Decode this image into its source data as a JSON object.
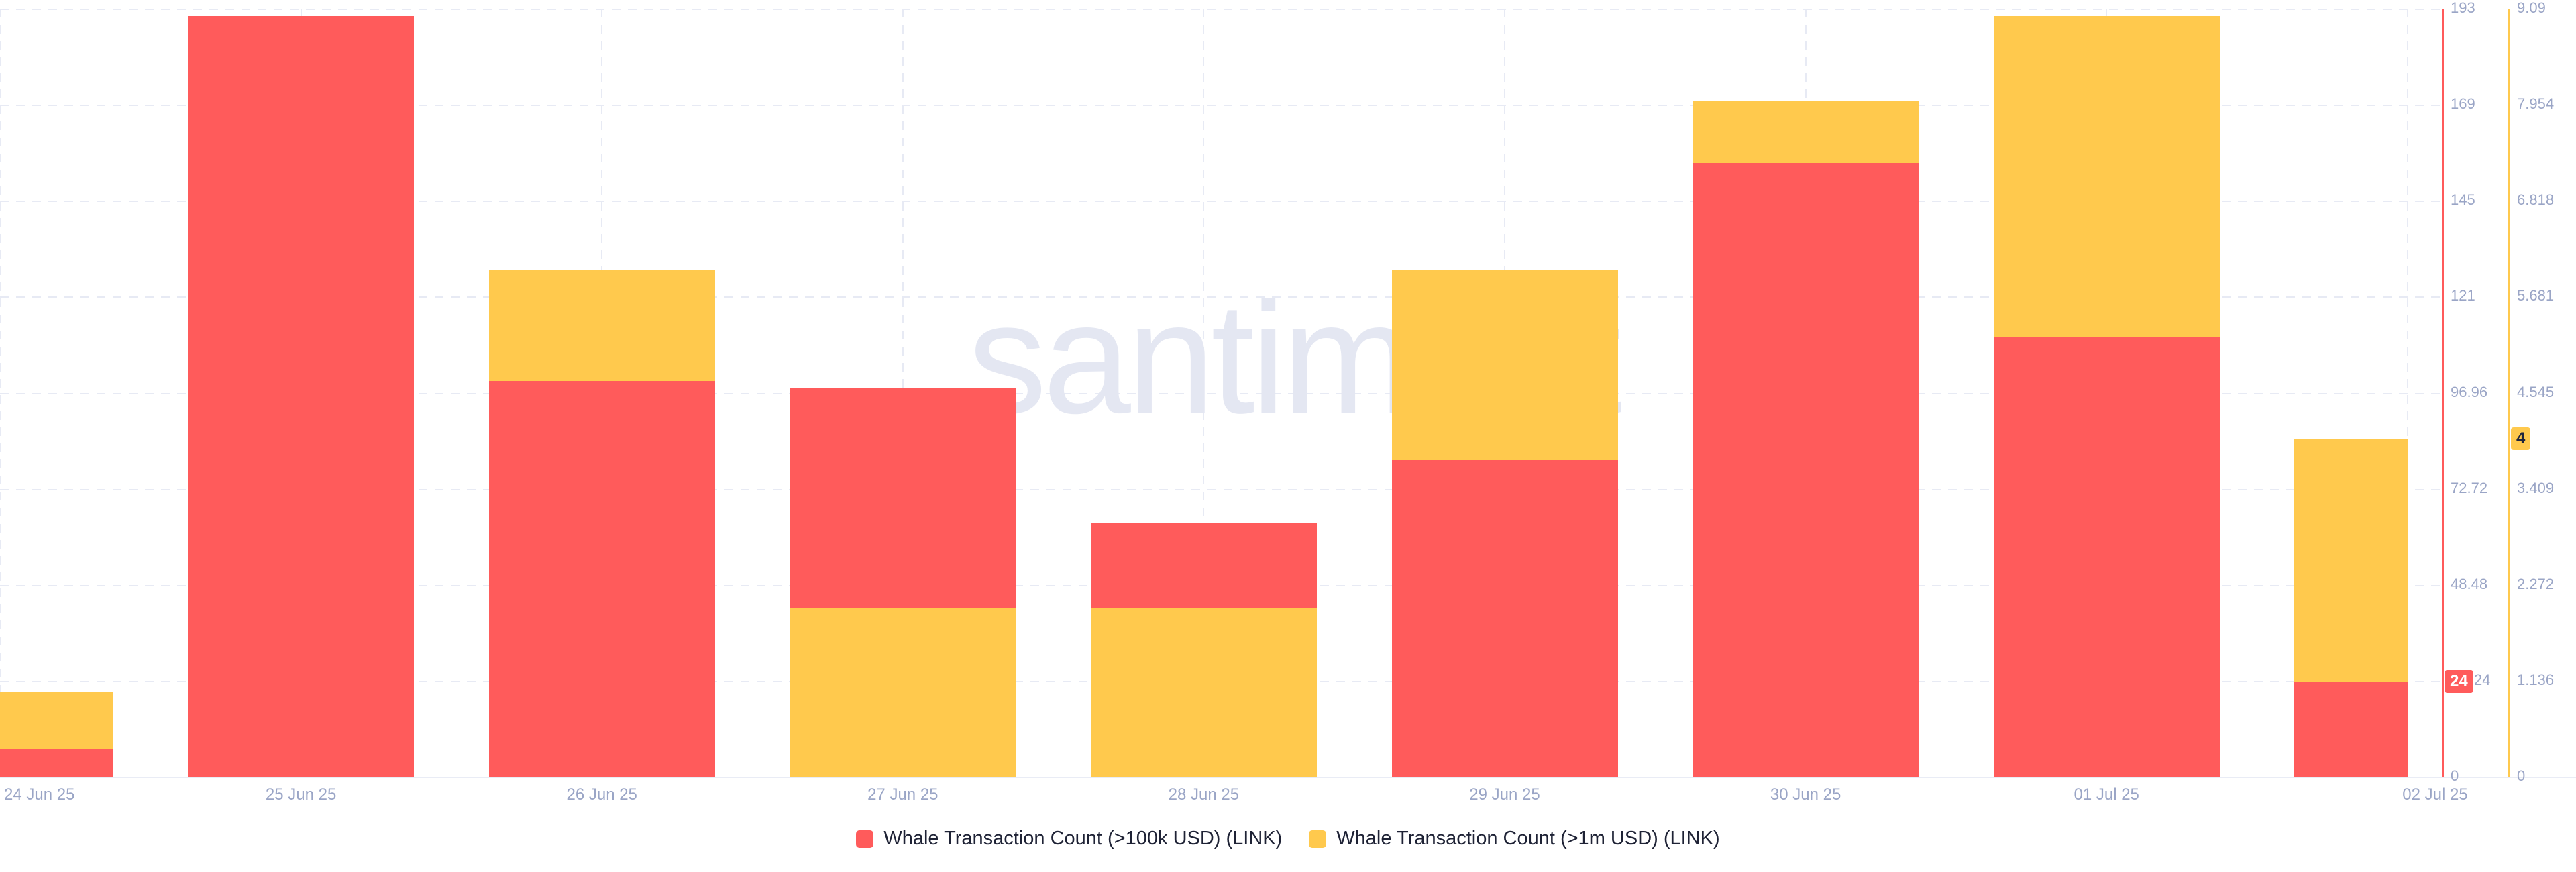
{
  "chart": {
    "watermark": ".santiment",
    "legend": [
      {
        "label": "Whale Transaction Count (>100k USD) (LINK)",
        "color": "#ff5b5b"
      },
      {
        "label": "Whale Transaction Count (>1m USD) (LINK)",
        "color": "#ffc94d"
      }
    ],
    "axes": {
      "red": {
        "color": "#ff5b5b",
        "badge": "24",
        "ticks": [
          "0",
          "24",
          "48.48",
          "72.72",
          "96.96",
          "121",
          "145",
          "169",
          "193"
        ]
      },
      "yellow": {
        "color": "#ffc94d",
        "badge": "4",
        "ticks": [
          "0",
          "1.136",
          "2.272",
          "3.409",
          "4.545",
          "5.681",
          "6.818",
          "7.954",
          "9.09"
        ]
      }
    }
  },
  "chart_data": {
    "type": "bar",
    "title": "",
    "xlabel": "",
    "ylabel": "",
    "categories": [
      "24 Jun 25",
      "25 Jun 25",
      "26 Jun 25",
      "27 Jun 25",
      "28 Jun 25",
      "29 Jun 25",
      "30 Jun 25",
      "01 Jul 25",
      "02 Jul 25"
    ],
    "series": [
      {
        "name": "Whale Transaction Count (>100k USD) (LINK)",
        "color": "#ff5b5b",
        "axis": "right-inner",
        "ylim": [
          0,
          193.92
        ],
        "values": [
          7,
          192,
          100,
          98,
          64,
          80,
          155,
          111,
          24
        ],
        "latest_value_badge": 24
      },
      {
        "name": "Whale Transaction Count (>1m USD) (LINK)",
        "color": "#ffc94d",
        "axis": "right-outer",
        "ylim": [
          0,
          9.0875
        ],
        "values": [
          1,
          0,
          6,
          2,
          2,
          6,
          8,
          9,
          4
        ],
        "latest_value_badge": 4
      }
    ],
    "bar_mode": "overlaid; shorter pixel bar rendered in front",
    "grid": "dashed horizontal at ticks + dashed vertical at category centers",
    "legend_position": "bottom-center"
  }
}
